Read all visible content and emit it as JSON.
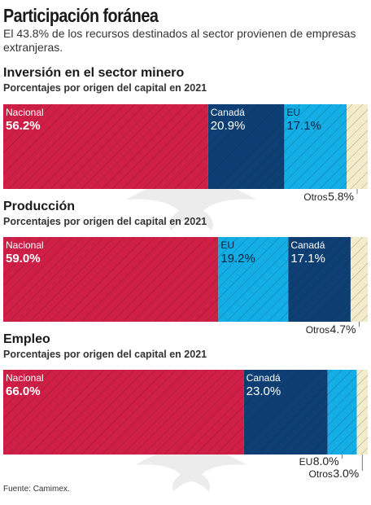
{
  "title": "Participación foránea",
  "subtitle": "El 43.8% de los recursos destinados al sector provienen de empresas extranjeras.",
  "source": "Fuente: Camimex.",
  "colors": {
    "nacional": "#d01f47",
    "canada": "#0e3f74",
    "eu": "#14aee6",
    "otros": "#f3eccb",
    "stripe": "#1a1a1a"
  },
  "chart_data": [
    {
      "type": "bar",
      "orientation": "horizontal-stacked",
      "title": "Inversión en el sector minero",
      "subtitle": "Porcentajes por origen del capital en 2021",
      "unit": "%",
      "segments": [
        {
          "name": "Nacional",
          "value": 56.2,
          "label": "56.2%",
          "color_key": "nacional"
        },
        {
          "name": "Canadá",
          "value": 20.9,
          "label": "20.9%",
          "color_key": "canada"
        },
        {
          "name": "EU",
          "value": 17.1,
          "label": "17.1%",
          "color_key": "eu"
        },
        {
          "name": "Otros",
          "value": 5.8,
          "label": "5.8%",
          "color_key": "otros",
          "outside": true
        }
      ]
    },
    {
      "type": "bar",
      "orientation": "horizontal-stacked",
      "title": "Producción",
      "subtitle": "Porcentajes por origen del capital en 2021",
      "unit": "%",
      "segments": [
        {
          "name": "Nacional",
          "value": 59.0,
          "label": "59.0%",
          "color_key": "nacional"
        },
        {
          "name": "EU",
          "value": 19.2,
          "label": "19.2%",
          "color_key": "eu"
        },
        {
          "name": "Canadá",
          "value": 17.1,
          "label": "17.1%",
          "color_key": "canada"
        },
        {
          "name": "Otros",
          "value": 4.7,
          "label": "4.7%",
          "color_key": "otros",
          "outside": true
        }
      ]
    },
    {
      "type": "bar",
      "orientation": "horizontal-stacked",
      "title": "Empleo",
      "subtitle": "Porcentajes por origen del capital en 2021",
      "unit": "%",
      "segments": [
        {
          "name": "Nacional",
          "value": 66.0,
          "label": "66.0%",
          "color_key": "nacional"
        },
        {
          "name": "Canadá",
          "value": 23.0,
          "label": "23.0%",
          "color_key": "canada"
        },
        {
          "name": "EU",
          "value": 8.0,
          "label": "8.0%",
          "color_key": "eu",
          "outside": true
        },
        {
          "name": "Otros",
          "value": 3.0,
          "label": "3.0%",
          "color_key": "otros",
          "outside": true
        }
      ]
    }
  ]
}
